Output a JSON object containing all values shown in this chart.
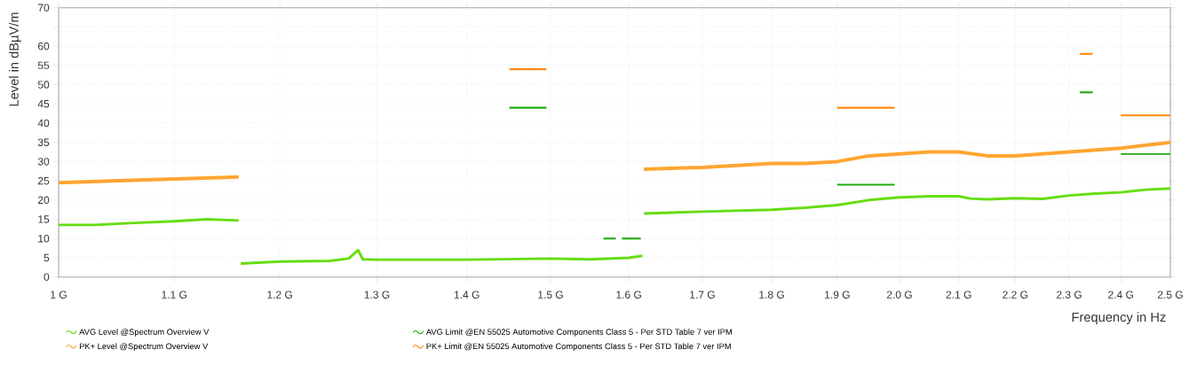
{
  "chart_data": {
    "type": "line",
    "xlabel": "Frequency in Hz",
    "ylabel": "Level in dBµV/m",
    "log": "x",
    "xlim": [
      1,
      2.5
    ],
    "ylim": [
      0,
      70
    ],
    "xticks": [
      {
        "value": 1,
        "label": "1 G"
      },
      {
        "value": 1.1,
        "label": "1.1 G"
      },
      {
        "value": 1.2,
        "label": "1.2 G"
      },
      {
        "value": 1.3,
        "label": "1.3 G"
      },
      {
        "value": 1.4,
        "label": "1.4 G"
      },
      {
        "value": 1.5,
        "label": "1.5 G"
      },
      {
        "value": 1.6,
        "label": "1.6 G"
      },
      {
        "value": 1.7,
        "label": "1.7 G"
      },
      {
        "value": 1.8,
        "label": "1.8 G"
      },
      {
        "value": 1.9,
        "label": "1.9 G"
      },
      {
        "value": 2.0,
        "label": "2.0 G"
      },
      {
        "value": 2.1,
        "label": "2.1 G"
      },
      {
        "value": 2.2,
        "label": "2.2 G"
      },
      {
        "value": 2.3,
        "label": "2.3 G"
      },
      {
        "value": 2.4,
        "label": "2.4 G"
      },
      {
        "value": 2.5,
        "label": "2.5 G"
      }
    ],
    "yticks": [
      0,
      5,
      10,
      15,
      20,
      25,
      30,
      35,
      40,
      45,
      50,
      55,
      60,
      {
        "value": 65,
        "label": null
      },
      70
    ],
    "grid": true,
    "legend": "bottom left",
    "marker": "none",
    "series": [
      {
        "name": "AVG Level @Spectrum Overview V",
        "color": "#66dd11",
        "x": [
          1.0,
          1.03,
          1.06,
          1.1,
          1.13,
          1.16,
          1.161,
          1.162,
          1.2,
          1.25,
          1.27,
          1.28,
          1.285,
          1.3,
          1.4,
          1.5,
          1.55,
          1.6,
          1.618,
          1.619,
          1.62,
          1.7,
          1.8,
          1.85,
          1.9,
          1.95,
          2.0,
          2.05,
          2.1,
          2.12,
          2.15,
          2.2,
          2.25,
          2.3,
          2.35,
          2.4,
          2.45,
          2.5
        ],
        "values": [
          13.5,
          13.5,
          14,
          14.5,
          15,
          14.7,
          null,
          3.5,
          4,
          4.2,
          4.8,
          7,
          4.6,
          4.5,
          4.5,
          4.8,
          4.6,
          5,
          5.5,
          null,
          16.5,
          17,
          17.5,
          18,
          18.7,
          20,
          20.7,
          21,
          21,
          20.4,
          20.2,
          20.5,
          20.3,
          21.2,
          21.7,
          22,
          22.7,
          23
        ]
      },
      {
        "name": "PK+ Level @Spectrum Overview V",
        "color": "#ffa531",
        "x": [
          1.0,
          1.05,
          1.1,
          1.16,
          1.4,
          1.62,
          1.7,
          1.8,
          1.85,
          1.9,
          1.95,
          2.0,
          2.05,
          2.1,
          2.15,
          2.2,
          2.3,
          2.4,
          2.5
        ],
        "values": [
          24.5,
          25,
          25.5,
          26,
          null,
          28,
          28.5,
          29.5,
          29.5,
          30,
          31.5,
          32,
          32.5,
          32.5,
          31.5,
          31.5,
          32.5,
          33.5,
          35
        ]
      },
      {
        "name": "AVG Limit @EN 55025 Automotive Components Class 5 - Per STD Table 7 ver IPM",
        "color": "#22aa11",
        "x": [
          1.45,
          1.495,
          1.53,
          1.567,
          1.583,
          1.587,
          1.591,
          1.616,
          1.7,
          1.9,
          1.992,
          2.1,
          2.32,
          2.345,
          2.37,
          2.4,
          2.5
        ],
        "values": [
          44,
          44,
          null,
          10,
          10,
          null,
          10,
          10,
          null,
          24,
          24,
          null,
          48,
          48,
          null,
          32,
          32
        ]
      },
      {
        "name": "PK+ Limit @EN 55025 Automotive Components Class 5 - Per STD Table 7 ver IPM",
        "color": "#ff8811",
        "x": [
          1.45,
          1.495,
          1.7,
          1.9,
          1.992,
          2.1,
          2.32,
          2.345,
          2.37,
          2.4,
          2.5
        ],
        "values": [
          54,
          54,
          null,
          44,
          44,
          null,
          58,
          58,
          null,
          42,
          42
        ]
      }
    ]
  }
}
